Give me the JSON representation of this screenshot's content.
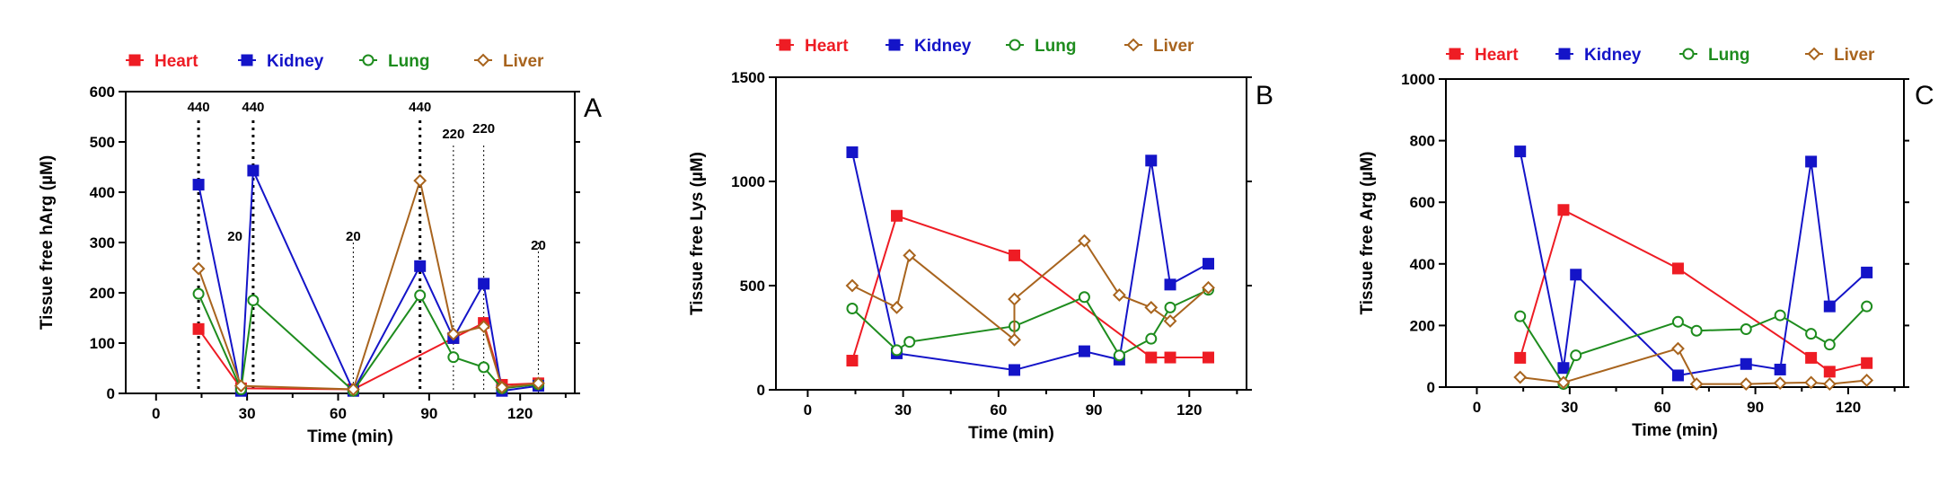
{
  "colors": {
    "heart": "#ee1c24",
    "kidney": "#1414c8",
    "lung": "#1e8c1e",
    "liver": "#a8641e"
  },
  "chart_data": [
    {
      "type": "line",
      "panel_label": "A",
      "ylabel": "Tissue free hArg (µM)",
      "xlabel": "Time (min)",
      "xlim": [
        -10,
        138
      ],
      "ylim": [
        0,
        600
      ],
      "xticks": [
        "0",
        "30",
        "60",
        "90",
        "120"
      ],
      "yticks": [
        "0",
        "100",
        "200",
        "300",
        "400",
        "500",
        "600"
      ],
      "legend": [
        "Heart",
        "Kidney",
        "Lung",
        "Liver"
      ],
      "series": [
        {
          "name": "Heart",
          "marker": "square",
          "x": [
            14,
            28,
            65,
            98,
            108,
            114,
            126
          ],
          "y": [
            128,
            10,
            8,
            110,
            140,
            17,
            20
          ]
        },
        {
          "name": "Kidney",
          "marker": "square",
          "x": [
            14,
            28,
            32,
            65,
            87,
            98,
            108,
            114,
            126
          ],
          "y": [
            415,
            5,
            443,
            5,
            253,
            110,
            218,
            5,
            15
          ]
        },
        {
          "name": "Lung",
          "marker": "circle",
          "x": [
            14,
            28,
            32,
            65,
            87,
            98,
            108,
            114,
            126
          ],
          "y": [
            198,
            8,
            185,
            5,
            195,
            72,
            52,
            10,
            18
          ]
        },
        {
          "name": "Liver",
          "marker": "diamond",
          "x": [
            14,
            28,
            65,
            87,
            98,
            108,
            114,
            126
          ],
          "y": [
            248,
            15,
            8,
            423,
            118,
            133,
            12,
            20
          ]
        }
      ],
      "annotations": [
        {
          "text": "440",
          "x": 14,
          "style": "dotted"
        },
        {
          "text": "440",
          "x": 32,
          "style": "dotted"
        },
        {
          "text": "20",
          "x": 26,
          "style": "none"
        },
        {
          "text": "20",
          "x": 65,
          "style": "fine"
        },
        {
          "text": "440",
          "x": 87,
          "style": "dotted"
        },
        {
          "text": "220",
          "x": 98,
          "style": "fine"
        },
        {
          "text": "220",
          "x": 108,
          "style": "fine"
        },
        {
          "text": "20",
          "x": 126,
          "style": "fine"
        }
      ]
    },
    {
      "type": "line",
      "panel_label": "B",
      "ylabel": "Tissue free Lys (µM)",
      "xlabel": "Time (min)",
      "xlim": [
        -10,
        138
      ],
      "ylim": [
        0,
        1500
      ],
      "xticks": [
        "0",
        "30",
        "60",
        "90",
        "120"
      ],
      "yticks": [
        "0",
        "500",
        "1000",
        "1500"
      ],
      "legend": [
        "Heart",
        "Kidney",
        "Lung",
        "Liver"
      ],
      "series": [
        {
          "name": "Heart",
          "marker": "square",
          "x": [
            14,
            28,
            65,
            108,
            114,
            126
          ],
          "y": [
            140,
            835,
            645,
            155,
            155,
            155
          ]
        },
        {
          "name": "Kidney",
          "marker": "square",
          "x": [
            14,
            28,
            65,
            87,
            98,
            108,
            114,
            126
          ],
          "y": [
            1140,
            175,
            95,
            185,
            145,
            1100,
            505,
            605
          ]
        },
        {
          "name": "Lung",
          "marker": "circle",
          "x": [
            14,
            28,
            32,
            65,
            87,
            98,
            108,
            114,
            126
          ],
          "y": [
            390,
            190,
            230,
            305,
            445,
            165,
            245,
            395,
            480
          ]
        },
        {
          "name": "Liver",
          "marker": "diamond",
          "x": [
            14,
            28,
            32,
            65,
            65,
            87,
            98,
            108,
            114,
            126
          ],
          "y": [
            500,
            395,
            645,
            240,
            435,
            715,
            455,
            395,
            330,
            490
          ]
        }
      ]
    },
    {
      "type": "line",
      "panel_label": "C",
      "ylabel": "Tissue free Arg (µM)",
      "xlabel": "Time (min)",
      "xlim": [
        -10,
        138
      ],
      "ylim": [
        0,
        1000
      ],
      "xticks": [
        "0",
        "30",
        "60",
        "90",
        "120"
      ],
      "yticks": [
        "0",
        "200",
        "400",
        "600",
        "800",
        "1000"
      ],
      "legend": [
        "Heart",
        "Kidney",
        "Lung",
        "Liver"
      ],
      "series": [
        {
          "name": "Heart",
          "marker": "square",
          "x": [
            14,
            28,
            65,
            108,
            114,
            126
          ],
          "y": [
            95,
            575,
            385,
            95,
            50,
            78
          ]
        },
        {
          "name": "Kidney",
          "marker": "square",
          "x": [
            14,
            28,
            32,
            65,
            87,
            98,
            108,
            114,
            126
          ],
          "y": [
            765,
            62,
            365,
            38,
            75,
            57,
            732,
            262,
            372
          ]
        },
        {
          "name": "Lung",
          "marker": "circle",
          "x": [
            14,
            28,
            32,
            65,
            71,
            87,
            98,
            108,
            114,
            126
          ],
          "y": [
            230,
            10,
            103,
            212,
            183,
            188,
            233,
            173,
            138,
            262
          ]
        },
        {
          "name": "Liver",
          "marker": "diamond",
          "x": [
            14,
            28,
            65,
            71,
            87,
            98,
            108,
            114,
            126
          ],
          "y": [
            32,
            15,
            125,
            10,
            10,
            13,
            15,
            10,
            22
          ]
        }
      ]
    }
  ]
}
